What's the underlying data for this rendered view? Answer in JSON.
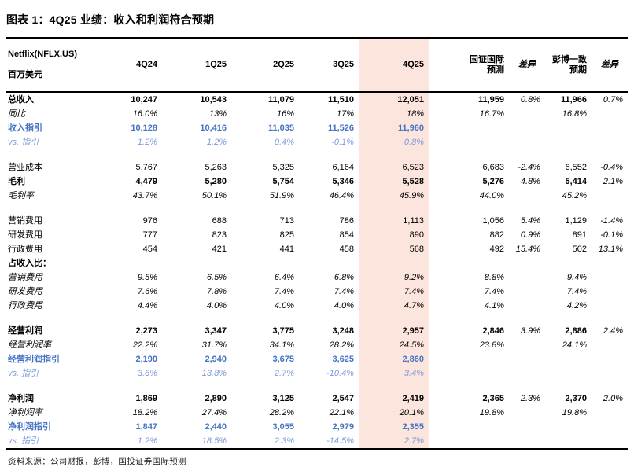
{
  "title": "图表 1：4Q25 业绩：收入和利润符合预期",
  "footer": "资料来源：公司财报，彭博，国投证券国际预测",
  "colors": {
    "highlight_pink": "#fbe5dc",
    "guidance_blue": "#4472c4",
    "vs_light_blue": "#7c99d9",
    "border_black": "#000000"
  },
  "table": {
    "entity_line1": "Netflix(NFLX.US)",
    "entity_line2": "百万美元",
    "columns": [
      {
        "key": "4q24",
        "label": "4Q24",
        "highlight": false,
        "diff": false
      },
      {
        "key": "1q25",
        "label": "1Q25",
        "highlight": false,
        "diff": false
      },
      {
        "key": "2q25",
        "label": "2Q25",
        "highlight": false,
        "diff": false
      },
      {
        "key": "3q25",
        "label": "3Q25",
        "highlight": false,
        "diff": false
      },
      {
        "key": "4q25",
        "label": "4Q25",
        "highlight": true,
        "diff": false
      },
      {
        "key": "gz-forecast",
        "label": "国证国际\n预测",
        "highlight": false,
        "diff": false
      },
      {
        "key": "gz-diff",
        "label": "差异",
        "highlight": false,
        "diff": true
      },
      {
        "key": "bbg-consensus",
        "label": "彭博一致\n预期",
        "highlight": false,
        "diff": false
      },
      {
        "key": "bbg-diff",
        "label": "差异",
        "highlight": false,
        "diff": true
      }
    ],
    "rows": [
      {
        "label": "总收入",
        "style": "bold",
        "gap_before": false,
        "values": [
          "10,247",
          "10,543",
          "11,079",
          "11,510",
          "12,051",
          "11,959",
          "0.8%",
          "11,966",
          "0.7%"
        ]
      },
      {
        "label": "同比",
        "style": "italic",
        "gap_before": false,
        "values": [
          "16.0%",
          "13%",
          "16%",
          "17%",
          "18%",
          "16.7%",
          "",
          "16.8%",
          ""
        ]
      },
      {
        "label": "收入指引",
        "style": "guide",
        "gap_before": false,
        "values": [
          "10,128",
          "10,416",
          "11,035",
          "11,526",
          "11,960",
          "",
          "",
          "",
          ""
        ]
      },
      {
        "label": "vs. 指引",
        "style": "vs",
        "gap_before": false,
        "values": [
          "1.2%",
          "1.2%",
          "0.4%",
          "-0.1%",
          "0.8%",
          "",
          "",
          "",
          ""
        ]
      },
      {
        "label": "营业成本",
        "style": "regular",
        "gap_before": true,
        "values": [
          "5,767",
          "5,263",
          "5,325",
          "6,164",
          "6,523",
          "6,683",
          "-2.4%",
          "6,552",
          "-0.4%"
        ]
      },
      {
        "label": "毛利",
        "style": "bold",
        "gap_before": false,
        "values": [
          "4,479",
          "5,280",
          "5,754",
          "5,346",
          "5,528",
          "5,276",
          "4.8%",
          "5,414",
          "2.1%"
        ]
      },
      {
        "label": "毛利率",
        "style": "italic",
        "gap_before": false,
        "values": [
          "43.7%",
          "50.1%",
          "51.9%",
          "46.4%",
          "45.9%",
          "44.0%",
          "",
          "45.2%",
          ""
        ]
      },
      {
        "label": "营销费用",
        "style": "regular",
        "gap_before": true,
        "values": [
          "976",
          "688",
          "713",
          "786",
          "1,113",
          "1,056",
          "5.4%",
          "1,129",
          "-1.4%"
        ]
      },
      {
        "label": "研发费用",
        "style": "regular",
        "gap_before": false,
        "values": [
          "777",
          "823",
          "825",
          "854",
          "890",
          "882",
          "0.9%",
          "891",
          "-0.1%"
        ]
      },
      {
        "label": "行政费用",
        "style": "regular",
        "gap_before": false,
        "values": [
          "454",
          "421",
          "441",
          "458",
          "568",
          "492",
          "15.4%",
          "502",
          "13.1%"
        ]
      },
      {
        "label": "占收入比：",
        "style": "section",
        "gap_before": false,
        "values": [
          "",
          "",
          "",
          "",
          "",
          "",
          "",
          "",
          ""
        ]
      },
      {
        "label": "营销费用",
        "style": "italic",
        "gap_before": false,
        "values": [
          "9.5%",
          "6.5%",
          "6.4%",
          "6.8%",
          "9.2%",
          "8.8%",
          "",
          "9.4%",
          ""
        ]
      },
      {
        "label": "研发费用",
        "style": "italic",
        "gap_before": false,
        "values": [
          "7.6%",
          "7.8%",
          "7.4%",
          "7.4%",
          "7.4%",
          "7.4%",
          "",
          "7.4%",
          ""
        ]
      },
      {
        "label": "行政费用",
        "style": "italic",
        "gap_before": false,
        "values": [
          "4.4%",
          "4.0%",
          "4.0%",
          "4.0%",
          "4.7%",
          "4.1%",
          "",
          "4.2%",
          ""
        ]
      },
      {
        "label": "经营利润",
        "style": "bold",
        "gap_before": true,
        "values": [
          "2,273",
          "3,347",
          "3,775",
          "3,248",
          "2,957",
          "2,846",
          "3.9%",
          "2,886",
          "2.4%"
        ]
      },
      {
        "label": "经营利润率",
        "style": "italic",
        "gap_before": false,
        "values": [
          "22.2%",
          "31.7%",
          "34.1%",
          "28.2%",
          "24.5%",
          "23.8%",
          "",
          "24.1%",
          ""
        ]
      },
      {
        "label": "经营利润指引",
        "style": "guide",
        "gap_before": false,
        "values": [
          "2,190",
          "2,940",
          "3,675",
          "3,625",
          "2,860",
          "",
          "",
          "",
          ""
        ]
      },
      {
        "label": "vs. 指引",
        "style": "vs",
        "gap_before": false,
        "values": [
          "3.8%",
          "13.8%",
          "2.7%",
          "-10.4%",
          "3.4%",
          "",
          "",
          "",
          ""
        ]
      },
      {
        "label": "净利润",
        "style": "bold",
        "gap_before": true,
        "values": [
          "1,869",
          "2,890",
          "3,125",
          "2,547",
          "2,419",
          "2,365",
          "2.3%",
          "2,370",
          "2.0%"
        ]
      },
      {
        "label": "净利润率",
        "style": "italic",
        "gap_before": false,
        "values": [
          "18.2%",
          "27.4%",
          "28.2%",
          "22.1%",
          "20.1%",
          "19.8%",
          "",
          "19.8%",
          ""
        ]
      },
      {
        "label": "净利润指引",
        "style": "guide",
        "gap_before": false,
        "values": [
          "1,847",
          "2,440",
          "3,055",
          "2,979",
          "2,355",
          "",
          "",
          "",
          ""
        ]
      },
      {
        "label": "vs. 指引",
        "style": "vs",
        "gap_before": false,
        "values": [
          "1.2%",
          "18.5%",
          "2.3%",
          "-14.5%",
          "2.7%",
          "",
          "",
          "",
          ""
        ]
      }
    ]
  }
}
